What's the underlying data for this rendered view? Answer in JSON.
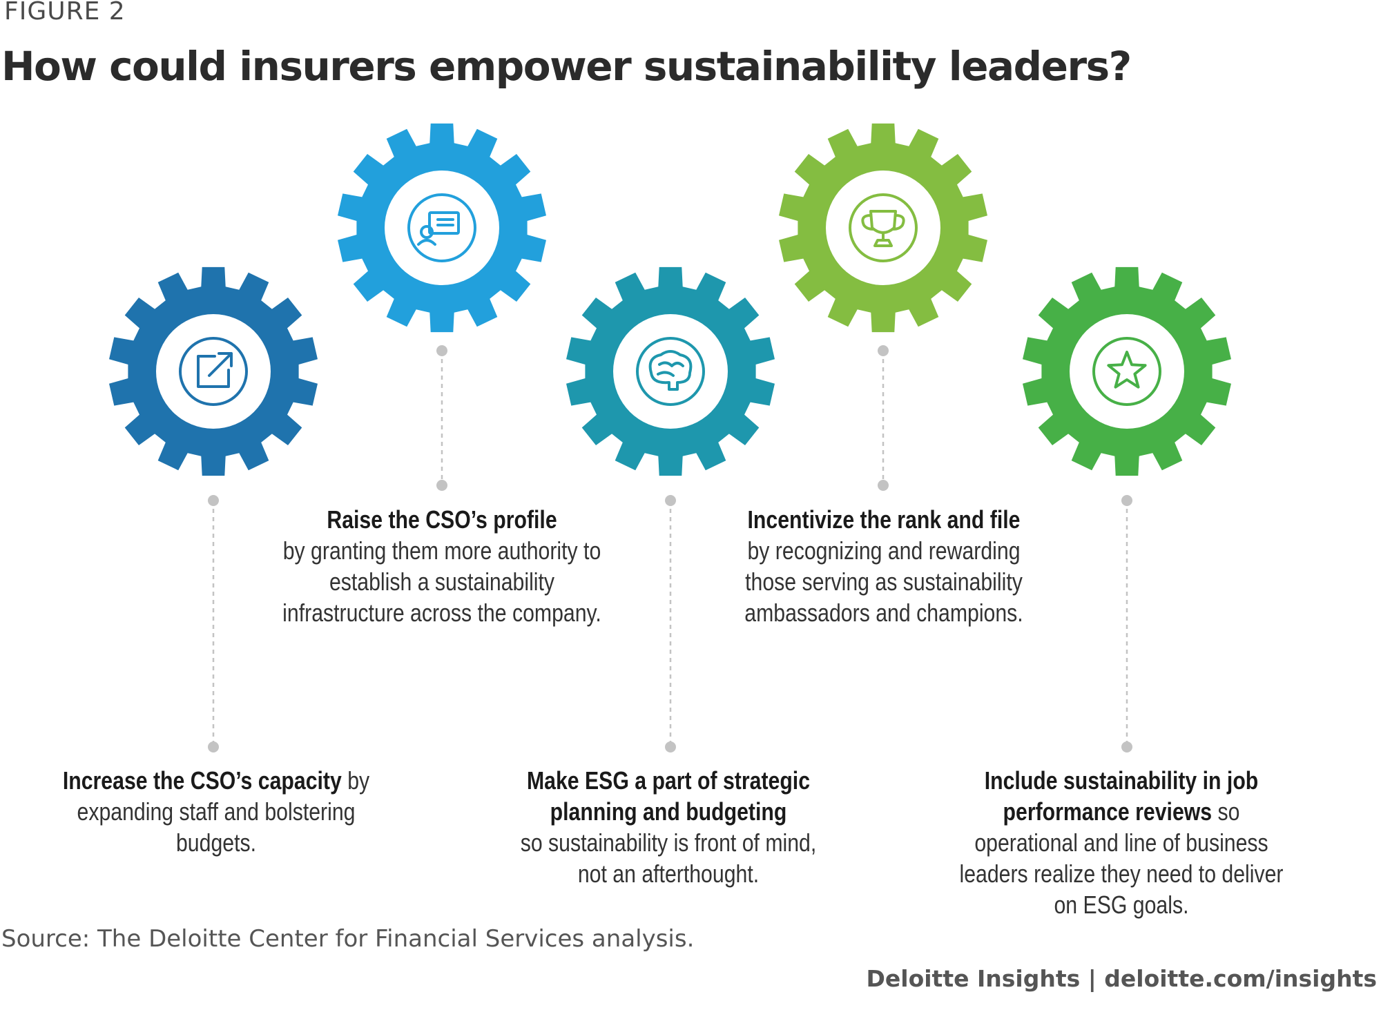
{
  "figure_label": "FIGURE 2",
  "title": "How could insurers empower sustainability leaders?",
  "gears": [
    {
      "icon": "external-link-icon",
      "color": "#1f73ad"
    },
    {
      "icon": "presentation-icon",
      "color": "#22a0dc"
    },
    {
      "icon": "brain-icon",
      "color": "#1e97ad"
    },
    {
      "icon": "trophy-icon",
      "color": "#84bd41"
    },
    {
      "icon": "star-icon",
      "color": "#47b047"
    }
  ],
  "captions": [
    {
      "bold": "Increase the CSO’s capacity",
      "text": " by expanding staff and bolstering budgets."
    },
    {
      "bold": "Raise the CSO’s profile",
      "text": " by granting them more authority to establish a sustainability infrastructure across the company."
    },
    {
      "bold": "Make ESG a part of strategic planning and budgeting",
      "text": " so sustainability is front of mind, not an afterthought."
    },
    {
      "bold": "Incentivize the rank and file",
      "text": " by recognizing and rewarding those serving as sustainability ambassadors and champions."
    },
    {
      "bold": "Include sustainability in job performance reviews",
      "text": " so operational and line of business leaders realize they need to deliver on ESG goals."
    }
  ],
  "source": "Source: The Deloitte Center for Financial Services analysis.",
  "footer": "Deloitte Insights | deloitte.com/insights"
}
